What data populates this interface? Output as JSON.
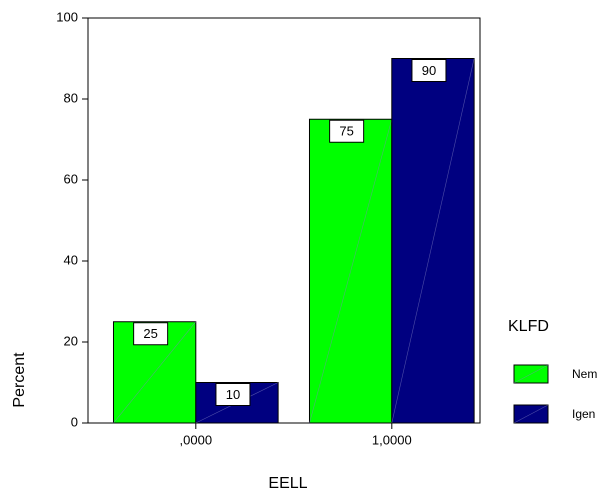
{
  "chart_data": {
    "type": "bar",
    "x_label": "EELL",
    "y_label": "Percent",
    "categories": [
      ",0000",
      "1,0000"
    ],
    "series": [
      {
        "name": "Nem",
        "color": "#00ff00",
        "values": [
          25,
          75
        ]
      },
      {
        "name": "Igen",
        "color": "#000080",
        "values": [
          10,
          90
        ]
      }
    ],
    "legend_title": "KLFD",
    "legend": "right",
    "ylim": [
      0,
      100
    ],
    "yticks": [
      0,
      20,
      40,
      60,
      80,
      100
    ]
  }
}
